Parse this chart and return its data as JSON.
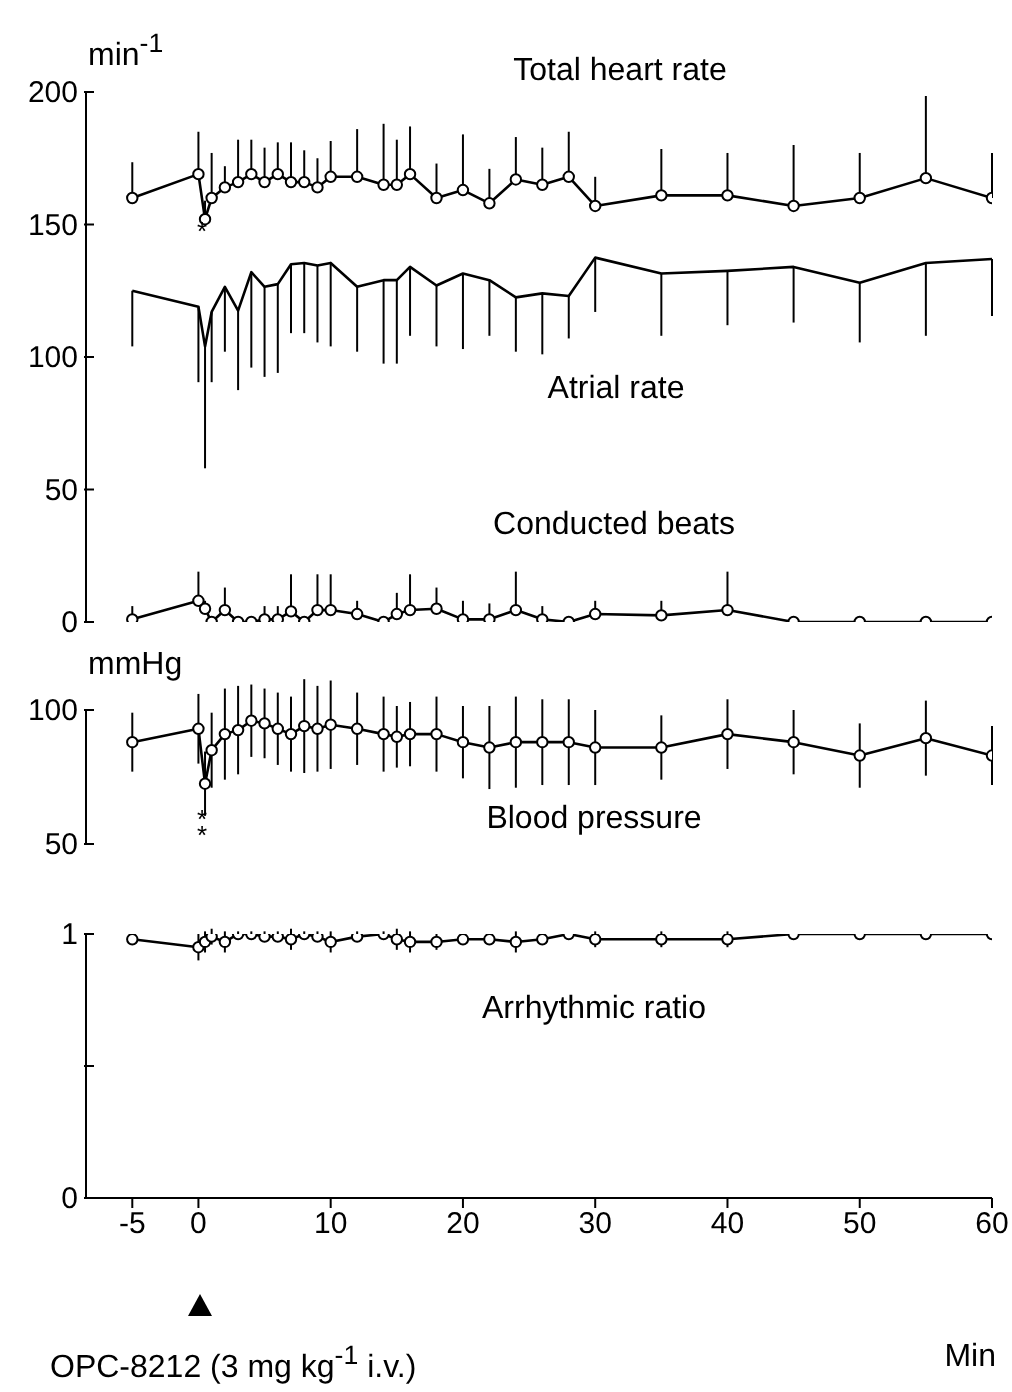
{
  "chart_data": [
    {
      "type": "line",
      "ylabel": "min$^{-1}$",
      "x": [
        -5,
        0,
        0.5,
        1,
        2,
        3,
        4,
        5,
        6,
        7,
        8,
        9,
        10,
        12,
        14,
        15,
        16,
        18,
        20,
        22,
        24,
        26,
        28,
        30,
        35,
        40,
        45,
        50,
        55,
        60
      ],
      "xlim": [
        -8.5,
        60
      ],
      "ylim": [
        0,
        200
      ],
      "yticks": [
        0,
        50,
        100,
        150,
        200
      ],
      "tick_labels": "y",
      "series": [
        {
          "name": "Total heart rate",
          "color": "#000000",
          "marker": "circle",
          "values": [
            160,
            169,
            152,
            160,
            164,
            166,
            169,
            166,
            169,
            166,
            166,
            164,
            168,
            168,
            165,
            165,
            169,
            160,
            163,
            158,
            167,
            165,
            168,
            157,
            161,
            161,
            157,
            160,
            167.5,
            160
          ],
          "errors": [
            [
              160,
              173.5
            ],
            [
              169,
              185
            ],
            [
              152,
              159
            ],
            [
              160,
              177
            ],
            [
              164,
              172
            ],
            [
              166,
              182
            ],
            [
              169,
              182
            ],
            [
              166,
              179
            ],
            [
              169,
              181
            ],
            [
              166,
              181
            ],
            [
              166,
              178
            ],
            [
              164,
              175
            ],
            [
              168,
              181.5
            ],
            [
              168,
              186
            ],
            [
              165,
              188
            ],
            [
              165,
              182
            ],
            [
              169,
              187
            ],
            [
              160,
              173
            ],
            [
              163,
              184
            ],
            [
              158,
              171
            ],
            [
              167,
              183
            ],
            [
              165,
              179
            ],
            [
              168,
              185
            ],
            [
              157,
              168
            ],
            [
              161,
              178.5
            ],
            [
              161,
              177
            ],
            [
              157,
              180
            ],
            [
              160,
              177
            ],
            [
              167.5,
              198.5
            ],
            [
              160,
              177
            ]
          ]
        },
        {
          "name": "Atrial rate",
          "color": "#000000",
          "marker": "none",
          "values": [
            125,
            119,
            104,
            117,
            126.5,
            117.5,
            132,
            126.5,
            127.5,
            135,
            135.5,
            134.5,
            135.5,
            126.5,
            129,
            129,
            134,
            127,
            131.5,
            129,
            122.5,
            124,
            123,
            137.5,
            131.5,
            132.5,
            134,
            128,
            135.5,
            137
          ],
          "errors": [
            [
              104,
              125
            ],
            [
              90.5,
              119
            ],
            [
              58,
              104
            ],
            [
              90.5,
              117
            ],
            [
              102,
              126.5
            ],
            [
              87.5,
              117.5
            ],
            [
              96,
              132
            ],
            [
              92.5,
              126.5
            ],
            [
              94,
              127.5
            ],
            [
              109,
              135
            ],
            [
              109,
              135.5
            ],
            [
              105.5,
              134.5
            ],
            [
              104,
              135.5
            ],
            [
              102,
              126.5
            ],
            [
              97.5,
              129
            ],
            [
              97.5,
              129
            ],
            [
              108,
              134
            ],
            [
              104,
              127
            ],
            [
              103,
              131.5
            ],
            [
              108,
              129
            ],
            [
              102,
              122.5
            ],
            [
              101,
              124
            ],
            [
              107,
              123
            ],
            [
              117,
              137.5
            ],
            [
              108,
              131.5
            ],
            [
              112,
              132.5
            ],
            [
              113,
              134
            ],
            [
              105.5,
              128
            ],
            [
              108,
              135.5
            ],
            [
              115.5,
              137
            ]
          ]
        },
        {
          "name": "Conducted beats",
          "color": "#000000",
          "marker": "circle",
          "values": [
            1,
            8,
            5,
            0,
            4.5,
            0,
            0,
            1,
            1,
            4,
            0,
            4.5,
            4.5,
            3,
            0,
            3,
            4.5,
            5,
            1,
            1,
            4.5,
            1,
            0,
            3,
            2.5,
            4.5,
            0,
            0,
            0,
            0
          ],
          "errors": [
            [
              1,
              6
            ],
            [
              8,
              19
            ],
            [
              5,
              8
            ],
            [
              0,
              2
            ],
            [
              4.5,
              13
            ],
            null,
            null,
            [
              1,
              6
            ],
            [
              1,
              6
            ],
            [
              4,
              18
            ],
            null,
            [
              4.5,
              18
            ],
            [
              4.5,
              18
            ],
            [
              3,
              8
            ],
            null,
            [
              3,
              11
            ],
            [
              4.5,
              18
            ],
            [
              5,
              13
            ],
            [
              1,
              8
            ],
            [
              1,
              7
            ],
            [
              4.5,
              19
            ],
            [
              1,
              6
            ],
            null,
            [
              3,
              8
            ],
            [
              2.5,
              8
            ],
            [
              4.5,
              19
            ],
            null,
            null,
            null,
            null
          ]
        }
      ],
      "annotations": [
        "*"
      ]
    },
    {
      "type": "line",
      "ylabel": "mmHg",
      "x": [
        -5,
        0,
        0.5,
        1,
        2,
        3,
        4,
        5,
        6,
        7,
        8,
        9,
        10,
        12,
        14,
        15,
        16,
        18,
        20,
        22,
        24,
        26,
        28,
        30,
        35,
        40,
        45,
        50,
        55,
        60
      ],
      "xlim": [
        -8.5,
        60
      ],
      "ylim": [
        50,
        100
      ],
      "yticks": [
        50,
        100
      ],
      "tick_labels": "y",
      "series": [
        {
          "name": "Blood pressure",
          "color": "#000000",
          "marker": "circle",
          "values": [
            88,
            93,
            72.5,
            85,
            91,
            92.5,
            96,
            95,
            93,
            91,
            94,
            93,
            94.5,
            93,
            91,
            90,
            91,
            91,
            88,
            86,
            88,
            88,
            88,
            86,
            86,
            91,
            88,
            83,
            89.5,
            83
          ],
          "errors": [
            11,
            13,
            12,
            14,
            17,
            16.5,
            13.5,
            13,
            13.5,
            14,
            17.5,
            16,
            16.5,
            13.5,
            14,
            11.5,
            12,
            14,
            13.5,
            15.5,
            17,
            16,
            16,
            14,
            12,
            13,
            12,
            12,
            14,
            11
          ]
        }
      ],
      "annotations": [
        "**"
      ]
    },
    {
      "type": "line",
      "xlabel": "Min",
      "x": [
        -5,
        0,
        0.5,
        1,
        2,
        3,
        4,
        5,
        6,
        7,
        8,
        9,
        10,
        12,
        14,
        15,
        16,
        18,
        20,
        22,
        24,
        26,
        28,
        30,
        35,
        40,
        45,
        50,
        55,
        60
      ],
      "xlim": [
        -8.5,
        60
      ],
      "xticks": [
        -5,
        0,
        10,
        20,
        30,
        40,
        50,
        60
      ],
      "ylim": [
        0,
        1
      ],
      "yticks": [
        0,
        {
          "value": 0.5,
          "label": null
        },
        1
      ],
      "series": [
        {
          "name": "Arrhythmic ratio",
          "color": "#000000",
          "marker": "circle",
          "values": [
            0.98,
            0.95,
            0.97,
            0.99,
            0.97,
            1,
            1,
            0.99,
            0.99,
            0.98,
            1,
            0.99,
            0.97,
            0.99,
            1,
            0.98,
            0.97,
            0.97,
            0.98,
            0.98,
            0.97,
            0.98,
            1,
            0.98,
            0.98,
            0.98,
            1,
            1,
            1,
            1
          ],
          "errors": [
            0.02,
            0.05,
            0.04,
            0.03,
            0.04,
            0.01,
            0.01,
            0.02,
            0.02,
            0.04,
            0.01,
            0.02,
            0.04,
            0.02,
            0.01,
            0.04,
            0.04,
            0.03,
            0.02,
            0.02,
            0.04,
            0.02,
            null,
            0.03,
            0.03,
            0.03,
            null,
            null,
            null,
            null
          ]
        }
      ],
      "annotations": [
        "OPC-8212 (3 mg kg$^{-1}$ i.v.)"
      ]
    }
  ]
}
